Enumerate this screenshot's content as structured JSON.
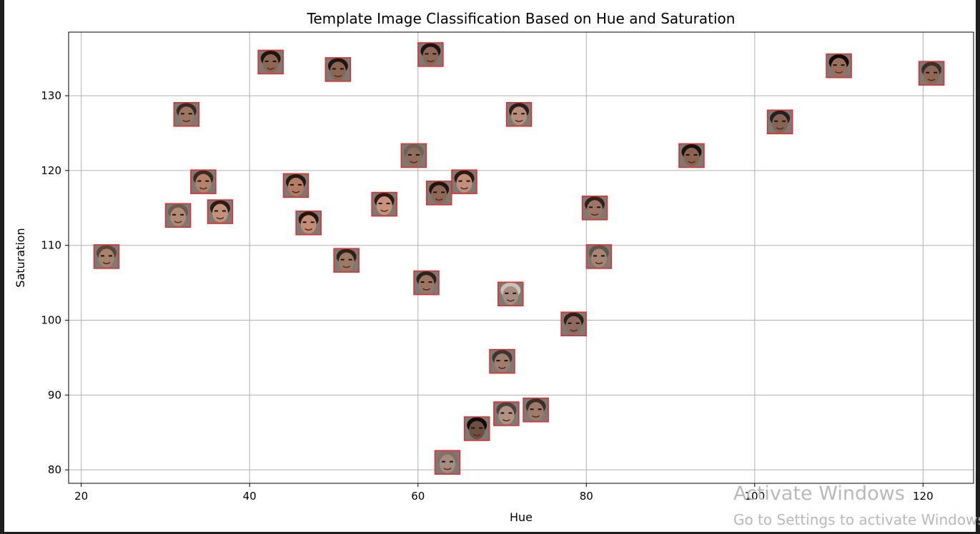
{
  "chart_data": {
    "type": "scatter",
    "title": "Template Image Classification Based on Hue and Saturation",
    "xlabel": "Hue",
    "ylabel": "Saturation",
    "xlim": [
      18.5,
      126
    ],
    "ylim": [
      78.2,
      138.5
    ],
    "xticks": [
      20,
      40,
      60,
      80,
      100,
      120
    ],
    "yticks": [
      80,
      90,
      100,
      110,
      120,
      130
    ],
    "grid": true,
    "marker": "face-thumbnail",
    "points": [
      {
        "x": 23,
        "y": 108.5,
        "skin": "#a7826c",
        "hair": "#5c4637"
      },
      {
        "x": 31.5,
        "y": 114,
        "skin": "#b08a75",
        "hair": "#6b5a52"
      },
      {
        "x": 32.5,
        "y": 127.5,
        "skin": "#9c7563",
        "hair": "#3a2a24"
      },
      {
        "x": 34.5,
        "y": 118.5,
        "skin": "#b3836a",
        "hair": "#3b2a22"
      },
      {
        "x": 36.5,
        "y": 114.5,
        "skin": "#c29378",
        "hair": "#2a1c16"
      },
      {
        "x": 42.5,
        "y": 134.5,
        "skin": "#8e6652",
        "hair": "#1d1512"
      },
      {
        "x": 45.5,
        "y": 118,
        "skin": "#b37d63",
        "hair": "#26190f"
      },
      {
        "x": 47,
        "y": 113,
        "skin": "#c58d74",
        "hair": "#22160f"
      },
      {
        "x": 50.5,
        "y": 133.5,
        "skin": "#8c6553",
        "hair": "#1e1612"
      },
      {
        "x": 51.5,
        "y": 108,
        "skin": "#9c7a66",
        "hair": "#2d231d"
      },
      {
        "x": 56,
        "y": 115.5,
        "skin": "#c8927c",
        "hair": "#2d1b15"
      },
      {
        "x": 59.5,
        "y": 122,
        "skin": "#8f6e5e",
        "hair": "#6a6358"
      },
      {
        "x": 61,
        "y": 105,
        "skin": "#9c7663",
        "hair": "#2c231f"
      },
      {
        "x": 61.5,
        "y": 135.5,
        "skin": "#8d6857",
        "hair": "#1c1512"
      },
      {
        "x": 62.5,
        "y": 117,
        "skin": "#8f6855",
        "hair": "#1f1611"
      },
      {
        "x": 63.5,
        "y": 81,
        "skin": "#a68b7e",
        "hair": "#7f7068"
      },
      {
        "x": 65.5,
        "y": 118.5,
        "skin": "#c28f7a",
        "hair": "#2a1a14"
      },
      {
        "x": 67,
        "y": 85.5,
        "skin": "#6e4f42",
        "hair": "#0d0a09"
      },
      {
        "x": 70,
        "y": 94.5,
        "skin": "#9f7d6f",
        "hair": "#3d3530"
      },
      {
        "x": 70.5,
        "y": 87.5,
        "skin": "#b29383",
        "hair": "#4a423b"
      },
      {
        "x": 71,
        "y": 103.5,
        "skin": "#a88e82",
        "hair": "#c9c2b8"
      },
      {
        "x": 72,
        "y": 127.5,
        "skin": "#b78e7c",
        "hair": "#2b1d18"
      },
      {
        "x": 74,
        "y": 88,
        "skin": "#9e7c6a",
        "hair": "#3a2f29"
      },
      {
        "x": 78.5,
        "y": 99.5,
        "skin": "#8f6c5d",
        "hair": "#2a211c"
      },
      {
        "x": 81,
        "y": 115,
        "skin": "#9d7665",
        "hair": "#2e231d"
      },
      {
        "x": 81.5,
        "y": 108.5,
        "skin": "#a88474",
        "hair": "#5c5550"
      },
      {
        "x": 92.5,
        "y": 122,
        "skin": "#8a6450",
        "hair": "#181210"
      },
      {
        "x": 103,
        "y": 126.5,
        "skin": "#856454",
        "hair": "#23201f"
      },
      {
        "x": 110,
        "y": 134,
        "skin": "#9a6e5a",
        "hair": "#0d0a08"
      },
      {
        "x": 121,
        "y": 133,
        "skin": "#8d6856",
        "hair": "#3a2f2a"
      }
    ]
  },
  "watermark": {
    "title": "Activate Windows",
    "subtitle": "Go to Settings to activate Windows."
  },
  "colors": {
    "thumbnail_border": "#e8282b",
    "grid": "#b0b0b0",
    "axis": "#000000"
  }
}
